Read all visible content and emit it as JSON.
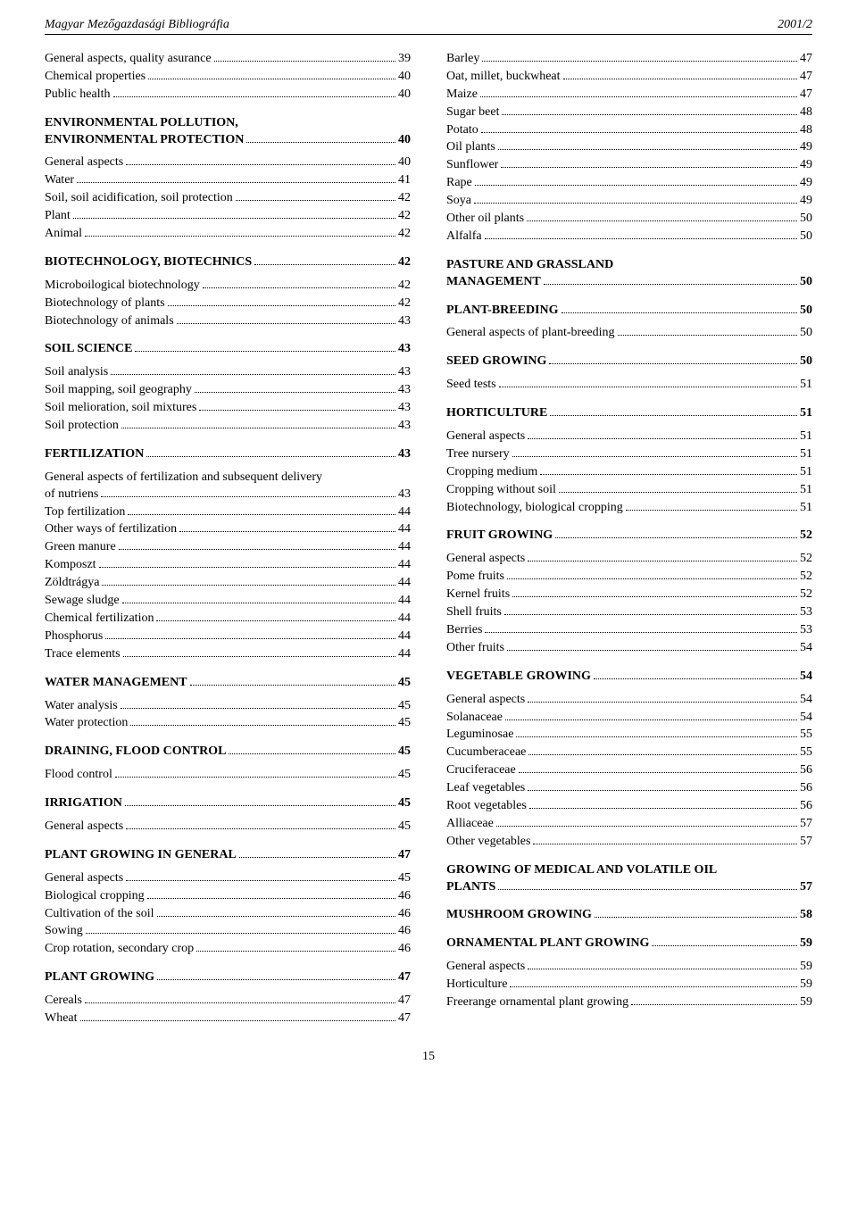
{
  "header": {
    "left": "Magyar Mezőgazdasági Bibliográfia",
    "right": "2001/2"
  },
  "page_number": "15",
  "left_col": [
    {
      "label": "General aspects, quality asurance",
      "page": "39",
      "bold": false
    },
    {
      "label": "Chemical properties",
      "page": "40",
      "bold": false
    },
    {
      "label": "Public health",
      "page": "40",
      "bold": false
    },
    {
      "spacer": true
    },
    {
      "multi": true,
      "first": "ENVIRONMENTAL POLLUTION,",
      "label": "ENVIRONMENTAL PROTECTION",
      "page": "40",
      "bold": true
    },
    {
      "half_spacer": true
    },
    {
      "label": "General aspects",
      "page": "40",
      "bold": false
    },
    {
      "label": "Water",
      "page": "41",
      "bold": false
    },
    {
      "label": "Soil, soil acidification, soil protection",
      "page": "42",
      "bold": false
    },
    {
      "label": "Plant",
      "page": "42",
      "bold": false
    },
    {
      "label": "Animal",
      "page": "42",
      "bold": false
    },
    {
      "spacer": true
    },
    {
      "label": "BIOTECHNOLOGY, BIOTECHNICS",
      "page": "42",
      "bold": true
    },
    {
      "half_spacer": true
    },
    {
      "label": "Microboilogical biotechnology",
      "page": "42",
      "bold": false
    },
    {
      "label": "Biotechnology of plants",
      "page": "42",
      "bold": false
    },
    {
      "label": "Biotechnology of animals",
      "page": "43",
      "bold": false
    },
    {
      "spacer": true
    },
    {
      "label": "SOIL SCIENCE",
      "page": "43",
      "bold": true
    },
    {
      "half_spacer": true
    },
    {
      "label": "Soil analysis",
      "page": "43",
      "bold": false
    },
    {
      "label": "Soil mapping, soil geography",
      "page": "43",
      "bold": false
    },
    {
      "label": "Soil melioration, soil mixtures",
      "page": "43",
      "bold": false
    },
    {
      "label": "Soil protection",
      "page": "43",
      "bold": false
    },
    {
      "spacer": true
    },
    {
      "label": "FERTILIZATION",
      "page": "43",
      "bold": true
    },
    {
      "half_spacer": true
    },
    {
      "multi": true,
      "first": "General aspects of fertilization and subsequent delivery",
      "label": "of nutriens",
      "page": "43",
      "bold": false
    },
    {
      "label": "Top fertilization",
      "page": "44",
      "bold": false
    },
    {
      "label": "Other ways of fertilization",
      "page": "44",
      "bold": false
    },
    {
      "label": "Green manure",
      "page": "44",
      "bold": false
    },
    {
      "label": "Komposzt",
      "page": "44",
      "bold": false
    },
    {
      "label": "Zöldtrágya",
      "page": "44",
      "bold": false
    },
    {
      "label": "Sewage sludge",
      "page": "44",
      "bold": false
    },
    {
      "label": "Chemical fertilization",
      "page": "44",
      "bold": false
    },
    {
      "label": "Phosphorus",
      "page": "44",
      "bold": false
    },
    {
      "label": "Trace elements",
      "page": "44",
      "bold": false
    },
    {
      "spacer": true
    },
    {
      "label": "WATER MANAGEMENT",
      "page": "45",
      "bold": true
    },
    {
      "half_spacer": true
    },
    {
      "label": "Water analysis",
      "page": "45",
      "bold": false
    },
    {
      "label": "Water protection",
      "page": "45",
      "bold": false
    },
    {
      "spacer": true
    },
    {
      "label": "DRAINING, FLOOD CONTROL",
      "page": "45",
      "bold": true
    },
    {
      "half_spacer": true
    },
    {
      "label": "Flood control",
      "page": "45",
      "bold": false
    },
    {
      "spacer": true
    },
    {
      "label": "IRRIGATION",
      "page": "45",
      "bold": true
    },
    {
      "half_spacer": true
    },
    {
      "label": "General aspects",
      "page": "45",
      "bold": false
    },
    {
      "spacer": true
    },
    {
      "label": "PLANT GROWING IN GENERAL",
      "page": "47",
      "bold": true
    },
    {
      "half_spacer": true
    },
    {
      "label": "General aspects",
      "page": "45",
      "bold": false
    },
    {
      "label": "Biological cropping",
      "page": "46",
      "bold": false
    },
    {
      "label": "Cultivation of the soil",
      "page": "46",
      "bold": false
    },
    {
      "label": "Sowing",
      "page": "46",
      "bold": false
    },
    {
      "label": "Crop rotation, secondary crop",
      "page": "46",
      "bold": false
    },
    {
      "spacer": true
    },
    {
      "label": "PLANT GROWING",
      "page": "47",
      "bold": true
    },
    {
      "half_spacer": true
    },
    {
      "label": "Cereals",
      "page": "47",
      "bold": false
    },
    {
      "label": "Wheat",
      "page": "47",
      "bold": false
    }
  ],
  "right_col": [
    {
      "label": "Barley",
      "page": "47",
      "bold": false
    },
    {
      "label": "Oat, millet, buckwheat",
      "page": "47",
      "bold": false
    },
    {
      "label": "Maize",
      "page": "47",
      "bold": false
    },
    {
      "label": "Sugar beet",
      "page": "48",
      "bold": false
    },
    {
      "label": "Potato",
      "page": "48",
      "bold": false
    },
    {
      "label": "Oil plants",
      "page": "49",
      "bold": false
    },
    {
      "label": "Sunflower",
      "page": "49",
      "bold": false
    },
    {
      "label": "Rape",
      "page": "49",
      "bold": false
    },
    {
      "label": "Soya",
      "page": "49",
      "bold": false
    },
    {
      "label": "Other oil plants",
      "page": "50",
      "bold": false
    },
    {
      "label": "Alfalfa",
      "page": "50",
      "bold": false
    },
    {
      "spacer": true
    },
    {
      "multi": true,
      "first": "PASTURE AND GRASSLAND",
      "label": "MANAGEMENT",
      "page": "50",
      "bold": true
    },
    {
      "spacer": true
    },
    {
      "label": "PLANT-BREEDING",
      "page": "50",
      "bold": true
    },
    {
      "half_spacer": true
    },
    {
      "label": "General aspects of plant-breeding",
      "page": "50",
      "bold": false
    },
    {
      "spacer": true
    },
    {
      "label": "SEED GROWING",
      "page": "50",
      "bold": true
    },
    {
      "half_spacer": true
    },
    {
      "label": "Seed tests",
      "page": "51",
      "bold": false
    },
    {
      "spacer": true
    },
    {
      "label": "HORTICULTURE",
      "page": "51",
      "bold": true
    },
    {
      "half_spacer": true
    },
    {
      "label": "General aspects",
      "page": "51",
      "bold": false
    },
    {
      "label": "Tree nursery",
      "page": "51",
      "bold": false
    },
    {
      "label": "Cropping medium",
      "page": "51",
      "bold": false
    },
    {
      "label": "Cropping without soil",
      "page": "51",
      "bold": false
    },
    {
      "label": "Biotechnology, biological cropping",
      "page": "51",
      "bold": false
    },
    {
      "spacer": true
    },
    {
      "label": "FRUIT GROWING",
      "page": "52",
      "bold": true
    },
    {
      "half_spacer": true
    },
    {
      "label": "General aspects",
      "page": "52",
      "bold": false
    },
    {
      "label": "Pome fruits",
      "page": "52",
      "bold": false
    },
    {
      "label": "Kernel fruits",
      "page": "52",
      "bold": false
    },
    {
      "label": "Shell fruits",
      "page": "53",
      "bold": false
    },
    {
      "label": "Berries",
      "page": "53",
      "bold": false
    },
    {
      "label": "Other fruits",
      "page": "54",
      "bold": false
    },
    {
      "spacer": true
    },
    {
      "label": "VEGETABLE GROWING",
      "page": "54",
      "bold": true
    },
    {
      "half_spacer": true
    },
    {
      "label": "General aspects",
      "page": "54",
      "bold": false
    },
    {
      "label": "Solanaceae",
      "page": "54",
      "bold": false
    },
    {
      "label": "Leguminosae",
      "page": "55",
      "bold": false
    },
    {
      "label": "Cucumberaceae",
      "page": "55",
      "bold": false
    },
    {
      "label": "Cruciferaceae",
      "page": "56",
      "bold": false
    },
    {
      "label": "Leaf vegetables",
      "page": "56",
      "bold": false
    },
    {
      "label": "Root vegetables",
      "page": "56",
      "bold": false
    },
    {
      "label": "Alliaceae",
      "page": "57",
      "bold": false
    },
    {
      "label": "Other vegetables",
      "page": "57",
      "bold": false
    },
    {
      "spacer": true
    },
    {
      "multi": true,
      "first": "GROWING OF MEDICAL AND VOLATILE OIL",
      "label": "PLANTS",
      "page": "57",
      "bold": true
    },
    {
      "spacer": true
    },
    {
      "label": "MUSHROOM GROWING",
      "page": "58",
      "bold": true
    },
    {
      "spacer": true
    },
    {
      "label": "ORNAMENTAL PLANT GROWING",
      "page": "59",
      "bold": true
    },
    {
      "half_spacer": true
    },
    {
      "label": "General aspects",
      "page": "59",
      "bold": false
    },
    {
      "label": "Horticulture",
      "page": "59",
      "bold": false
    },
    {
      "label": "Freerange ornamental plant growing",
      "page": "59",
      "bold": false
    }
  ]
}
